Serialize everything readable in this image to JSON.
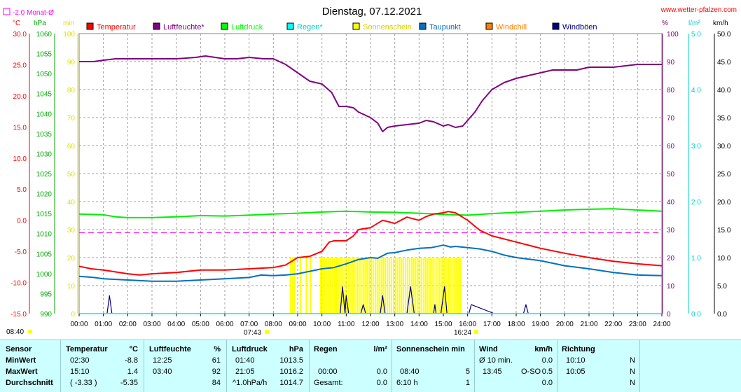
{
  "title": "Dienstag, 07.12.2021",
  "website": "www.wetter-pfalzen.com",
  "monthly_avg_label": "-2.0 Monat-Ø",
  "axis_units": {
    "temp": "°C",
    "pressure": "hPa",
    "sun": "min",
    "humidity": "%",
    "rain": "l/m²",
    "wind": "km/h"
  },
  "legend": [
    {
      "label": "Temperatur",
      "color": "#ff0000"
    },
    {
      "label": "Luftfeuchte*",
      "color": "#800080"
    },
    {
      "label": "Luftdruck",
      "color": "#00ff00"
    },
    {
      "label": "Regen*",
      "color": "#00ffff"
    },
    {
      "label": "Sonnenschein",
      "color": "#ffff00"
    },
    {
      "label": "Taupunkt",
      "color": "#0070c0"
    },
    {
      "label": "Windchill",
      "color": "#ff8000"
    },
    {
      "label": "Windböen",
      "color": "#000080"
    }
  ],
  "sun_events": {
    "sunrise": "07:43",
    "sunset": "16:24"
  },
  "chart_data": {
    "type": "line",
    "x_label": "time",
    "x_ticks": [
      "00:00",
      "01:00",
      "02:00",
      "03:00",
      "04:00",
      "05:00",
      "06:00",
      "07:00",
      "08:00",
      "09:00",
      "10:00",
      "11:00",
      "12:00",
      "13:00",
      "14:00",
      "15:00",
      "16:00",
      "17:00",
      "18:00",
      "19:00",
      "20:00",
      "21:00",
      "22:00",
      "23:00",
      "24:00"
    ],
    "axes": {
      "temperature": {
        "unit": "°C",
        "range": [
          -15,
          30
        ],
        "ticks": [
          "-15.0",
          "-10.0",
          "-5.0",
          "0.0",
          "5.0",
          "10.0",
          "15.0",
          "20.0",
          "25.0",
          "30.0"
        ],
        "color": "#ff0000"
      },
      "pressure": {
        "unit": "hPa",
        "range": [
          990,
          1060
        ],
        "ticks": [
          "990",
          "995",
          "1000",
          "1005",
          "1010",
          "1015",
          "1020",
          "1025",
          "1030",
          "1035",
          "1040",
          "1045",
          "1050",
          "1055",
          "1060"
        ],
        "color": "#00aa00"
      },
      "sunshine": {
        "unit": "min",
        "range": [
          0,
          100
        ],
        "ticks": [
          "0",
          "10",
          "20",
          "30",
          "40",
          "50",
          "60",
          "70",
          "80",
          "90",
          "100"
        ],
        "color": "#e0e000"
      },
      "humidity": {
        "unit": "%",
        "range": [
          0,
          100
        ],
        "ticks": [
          "0",
          "10",
          "20",
          "30",
          "40",
          "50",
          "60",
          "70",
          "80",
          "90",
          "100"
        ],
        "color": "#800080"
      },
      "rain": {
        "unit": "l/m²",
        "range": [
          0,
          5
        ],
        "ticks": [
          "0.0",
          "1.0",
          "2.0",
          "3.0",
          "4.0",
          "5.0"
        ],
        "color": "#00cccc"
      },
      "wind": {
        "unit": "km/h",
        "range": [
          0,
          50
        ],
        "ticks": [
          "0.0",
          "5.0",
          "10.0",
          "15.0",
          "20.0",
          "25.0",
          "30.0",
          "35.0",
          "40.0",
          "45.0",
          "50.0"
        ],
        "color": "#000000"
      }
    },
    "monthly_avg_temp": -2.0,
    "series": [
      {
        "name": "Luftfeuchte*",
        "axis": "humidity",
        "color": "#800080",
        "x": [
          0,
          0.6,
          1.0,
          1.5,
          2.0,
          3.0,
          4.0,
          4.8,
          5.2,
          6.0,
          6.5,
          7.0,
          7.6,
          8.0,
          8.5,
          9.0,
          9.5,
          10.0,
          10.4,
          10.7,
          11.0,
          11.3,
          11.5,
          12.0,
          12.3,
          12.5,
          12.7,
          13.0,
          13.5,
          14.0,
          14.3,
          14.6,
          15.0,
          15.2,
          15.5,
          15.8,
          16.0,
          16.3,
          16.6,
          17.0,
          17.5,
          18.0,
          18.5,
          19.0,
          19.5,
          20.0,
          20.5,
          21.0,
          22.0,
          23.0,
          24.0
        ],
        "y": [
          90,
          90,
          90.5,
          91,
          91,
          91,
          91,
          91.5,
          92,
          91,
          91,
          91.5,
          91,
          91,
          89,
          86,
          83,
          82,
          79,
          74,
          74,
          73.5,
          72,
          70,
          68,
          65,
          66.5,
          67,
          67.5,
          68,
          69,
          68.5,
          67,
          67.5,
          66.5,
          67,
          69,
          72,
          76,
          80,
          82.5,
          84,
          85,
          86,
          87,
          87,
          87,
          88,
          88,
          89,
          89
        ]
      },
      {
        "name": "Luftdruck",
        "axis": "pressure",
        "color": "#00ee00",
        "x": [
          0,
          0.5,
          1.0,
          1.5,
          2.0,
          3.0,
          4.0,
          5.0,
          6.0,
          7.0,
          8.0,
          9.0,
          10.0,
          11.0,
          12.0,
          13.0,
          14.0,
          15.0,
          15.5,
          16.0,
          17.0,
          18.0,
          19.0,
          20.0,
          21.0,
          22.0,
          23.0,
          24.0
        ],
        "y": [
          1014.9,
          1014.8,
          1014.7,
          1014.2,
          1014.0,
          1014.0,
          1014.2,
          1014.5,
          1014.4,
          1014.6,
          1014.9,
          1015.1,
          1015.4,
          1015.6,
          1015.4,
          1015.3,
          1015.1,
          1014.8,
          1014.7,
          1014.6,
          1015.0,
          1015.3,
          1015.6,
          1015.9,
          1016.1,
          1016.2,
          1015.9,
          1015.6
        ]
      },
      {
        "name": "Temperatur",
        "axis": "temperature",
        "color": "#ff0000",
        "x": [
          0,
          0.5,
          1.0,
          2.0,
          2.5,
          3.0,
          4.0,
          5.0,
          6.0,
          7.0,
          8.0,
          8.5,
          9.0,
          9.5,
          10.0,
          10.3,
          10.5,
          11.0,
          11.3,
          11.5,
          12.0,
          12.5,
          13.0,
          13.5,
          14.0,
          14.3,
          14.6,
          15.0,
          15.2,
          15.5,
          16.0,
          16.5,
          17.0,
          18.0,
          19.0,
          20.0,
          21.0,
          22.0,
          23.0,
          24.0
        ],
        "y": [
          -7.4,
          -7.8,
          -8.0,
          -8.6,
          -8.8,
          -8.6,
          -8.4,
          -8.0,
          -8.0,
          -7.8,
          -7.6,
          -7.2,
          -6.0,
          -5.8,
          -5.0,
          -3.5,
          -3.3,
          -3.3,
          -2.5,
          -1.5,
          -1.2,
          0.0,
          -0.5,
          0.5,
          0.0,
          0.6,
          1.0,
          1.2,
          1.4,
          1.2,
          0.0,
          -1.6,
          -2.5,
          -3.5,
          -4.5,
          -5.3,
          -6.0,
          -6.6,
          -7.0,
          -7.3
        ]
      },
      {
        "name": "Taupunkt",
        "axis": "temperature",
        "color": "#0070c0",
        "x": [
          0,
          0.6,
          1.0,
          2.0,
          3.0,
          4.0,
          5.0,
          6.0,
          7.0,
          7.5,
          8.0,
          8.5,
          9.0,
          10.0,
          10.5,
          11.0,
          11.5,
          12.0,
          12.3,
          12.7,
          13.0,
          13.5,
          14.0,
          14.5,
          15.0,
          15.3,
          15.5,
          16.0,
          16.5,
          17.0,
          17.5,
          18.0,
          19.0,
          20.0,
          21.0,
          22.0,
          23.0,
          24.0
        ],
        "y": [
          -9.0,
          -9.2,
          -9.4,
          -9.6,
          -9.8,
          -9.8,
          -9.6,
          -9.4,
          -9.2,
          -8.8,
          -8.9,
          -8.8,
          -8.6,
          -7.8,
          -7.6,
          -7.0,
          -6.3,
          -6.0,
          -6.1,
          -5.3,
          -5.2,
          -4.8,
          -4.5,
          -4.4,
          -4.0,
          -4.3,
          -4.2,
          -4.4,
          -4.6,
          -5.0,
          -5.6,
          -6.0,
          -6.5,
          -7.3,
          -7.8,
          -8.4,
          -8.8,
          -8.9
        ]
      },
      {
        "name": "Windböen",
        "axis": "wind",
        "color": "#000080",
        "x": [
          0,
          1.15,
          1.25,
          1.35,
          2.0,
          10.75,
          10.85,
          10.95,
          11.0,
          11.1,
          11.6,
          11.7,
          11.8,
          12.4,
          12.5,
          12.6,
          13.5,
          13.65,
          13.8,
          14.6,
          14.65,
          14.7,
          14.9,
          15.05,
          15.15,
          16.0,
          16.05,
          16.15,
          17.1,
          17.2,
          17.3,
          18.3,
          18.4,
          18.5,
          24.0
        ],
        "y": [
          0,
          0,
          3.2,
          0,
          0,
          0,
          4.8,
          0,
          3.2,
          0,
          0,
          1.6,
          0,
          0,
          3.2,
          0,
          0,
          4.8,
          0,
          0,
          1.6,
          0,
          0,
          4.8,
          0,
          0,
          0,
          1.6,
          0,
          0,
          0,
          0,
          1.6,
          0,
          0
        ]
      },
      {
        "name": "Regen*",
        "axis": "rain",
        "color": "#00ffff",
        "x": [
          0,
          24
        ],
        "y": [
          0,
          0
        ]
      }
    ],
    "sunshine_bars": {
      "axis": "sunshine",
      "color": "#ffff00",
      "value": 5,
      "start_hours": [
        8.67,
        8.75,
        8.83,
        9.08,
        9.33,
        9.5,
        9.92,
        10.0,
        10.08,
        10.17,
        10.25,
        10.33,
        10.42,
        10.5,
        10.58,
        10.67,
        10.75,
        10.83,
        10.92,
        11.0,
        11.08,
        11.17,
        11.25,
        11.33,
        11.42,
        11.5,
        11.58,
        11.67,
        11.75,
        11.83,
        11.92,
        12.0,
        12.08,
        12.17,
        12.25,
        12.33,
        12.42,
        12.5,
        12.58,
        12.67,
        12.75,
        12.83,
        12.92,
        13.0,
        13.08,
        13.17,
        13.25,
        13.33,
        13.42,
        13.5,
        13.58,
        13.67,
        13.75,
        13.83,
        13.92,
        14.0,
        14.08,
        14.17,
        14.25,
        14.33,
        14.42,
        14.5,
        14.58,
        14.67,
        14.75,
        14.83,
        14.92,
        15.0,
        15.08,
        15.17,
        15.25,
        15.33,
        15.42,
        15.5,
        15.58,
        15.67
      ]
    }
  },
  "summary": {
    "headers": {
      "sensor": "Sensor",
      "temp": "Temperatur",
      "temp_unit": "°C",
      "humidity": "Luftfeuchte",
      "humidity_unit": "%",
      "pressure": "Luftdruck",
      "pressure_unit": "hPa",
      "rain": "Regen",
      "rain_unit": "l/m²",
      "sun": "Sonnenschein min",
      "wind": "Wind",
      "wind_unit": "km/h",
      "direction": "Richtung"
    },
    "rows": [
      {
        "label": "MinWert",
        "temp_time": "02:30",
        "temp_val": "-8.8",
        "hum_time": "12:25",
        "hum_val": "61",
        "press_time": "01:40",
        "press_val": "1013.5",
        "rain_time": "",
        "rain_val": "",
        "sun_time": "",
        "sun_val": "",
        "wind_time": "Ø 10 min.",
        "wind_dir": "",
        "wind_val": "0.0",
        "dir_time": "10:10",
        "dir_val": "N"
      },
      {
        "label": "MaxWert",
        "temp_time": "15:10",
        "temp_val": "1.4",
        "hum_time": "03:40",
        "hum_val": "92",
        "press_time": "21:05",
        "press_val": "1016.2",
        "rain_time": "00:00",
        "rain_val": "0.0",
        "sun_time": "08:40",
        "sun_val": "5",
        "wind_time": "13:45",
        "wind_dir": "O-SO",
        "wind_val": "0.5",
        "dir_time": "10:05",
        "dir_val": "N"
      },
      {
        "label": "Durchschnitt",
        "temp_time": "( -3.33 )",
        "temp_val": "-5.35",
        "hum_time": "",
        "hum_val": "84",
        "press_time": "^1.0hPa/h",
        "press_val": "1014.7",
        "rain_time": "Gesamt:",
        "rain_val": "0.0",
        "sun_time": "6:10 h",
        "sun_val": "1",
        "wind_time": "",
        "wind_dir": "",
        "wind_val": "0.0",
        "dir_time": "",
        "dir_val": "N"
      }
    ]
  },
  "first_sun_time": "08:40"
}
